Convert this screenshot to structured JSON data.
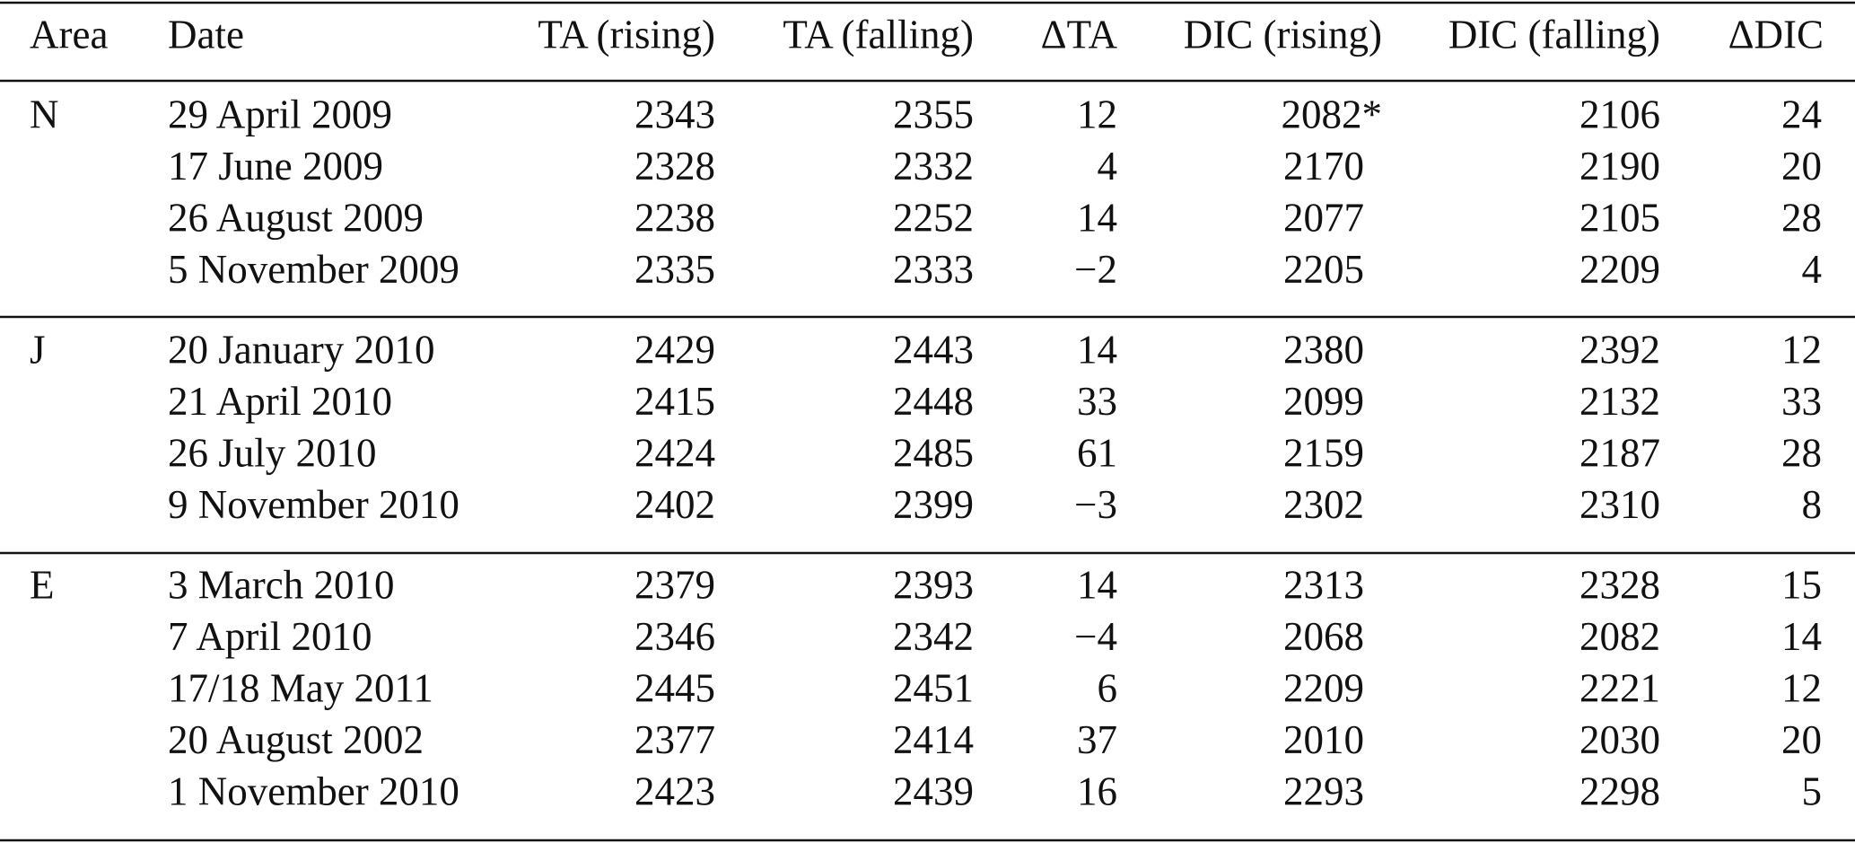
{
  "table": {
    "header": [
      "Area",
      "Date",
      "TA (rising)",
      "TA (falling)",
      "ΔTA",
      "DIC (rising)",
      "DIC (falling)",
      "ΔDIC"
    ],
    "groups": [
      {
        "area": "N",
        "rows": [
          [
            "29 April 2009",
            "2343",
            "2355",
            "12",
            "2082*",
            "2106",
            "24"
          ],
          [
            "17 June 2009",
            "2328",
            "2332",
            "4",
            "2170",
            "2190",
            "20"
          ],
          [
            "26 August 2009",
            "2238",
            "2252",
            "14",
            "2077",
            "2105",
            "28"
          ],
          [
            "5 November 2009",
            "2335",
            "2333",
            "−2",
            "2205",
            "2209",
            "4"
          ]
        ]
      },
      {
        "area": "J",
        "rows": [
          [
            "20 January 2010",
            "2429",
            "2443",
            "14",
            "2380",
            "2392",
            "12"
          ],
          [
            "21 April 2010",
            "2415",
            "2448",
            "33",
            "2099",
            "2132",
            "33"
          ],
          [
            "26 July 2010",
            "2424",
            "2485",
            "61",
            "2159",
            "2187",
            "28"
          ],
          [
            "9 November 2010",
            "2402",
            "2399",
            "−3",
            "2302",
            "2310",
            "8"
          ]
        ]
      },
      {
        "area": "E",
        "rows": [
          [
            "3 March 2010",
            "2379",
            "2393",
            "14",
            "2313",
            "2328",
            "15"
          ],
          [
            "7 April 2010",
            "2346",
            "2342",
            "−4",
            "2068",
            "2082",
            "14"
          ],
          [
            "17/18 May 2011",
            "2445",
            "2451",
            "6",
            "2209",
            "2221",
            "12"
          ],
          [
            "20 August 2002",
            "2377",
            "2414",
            "37",
            "2010",
            "2030",
            "20"
          ],
          [
            "1 November 2010",
            "2423",
            "2439",
            "16",
            "2293",
            "2298",
            "5"
          ]
        ]
      }
    ]
  }
}
